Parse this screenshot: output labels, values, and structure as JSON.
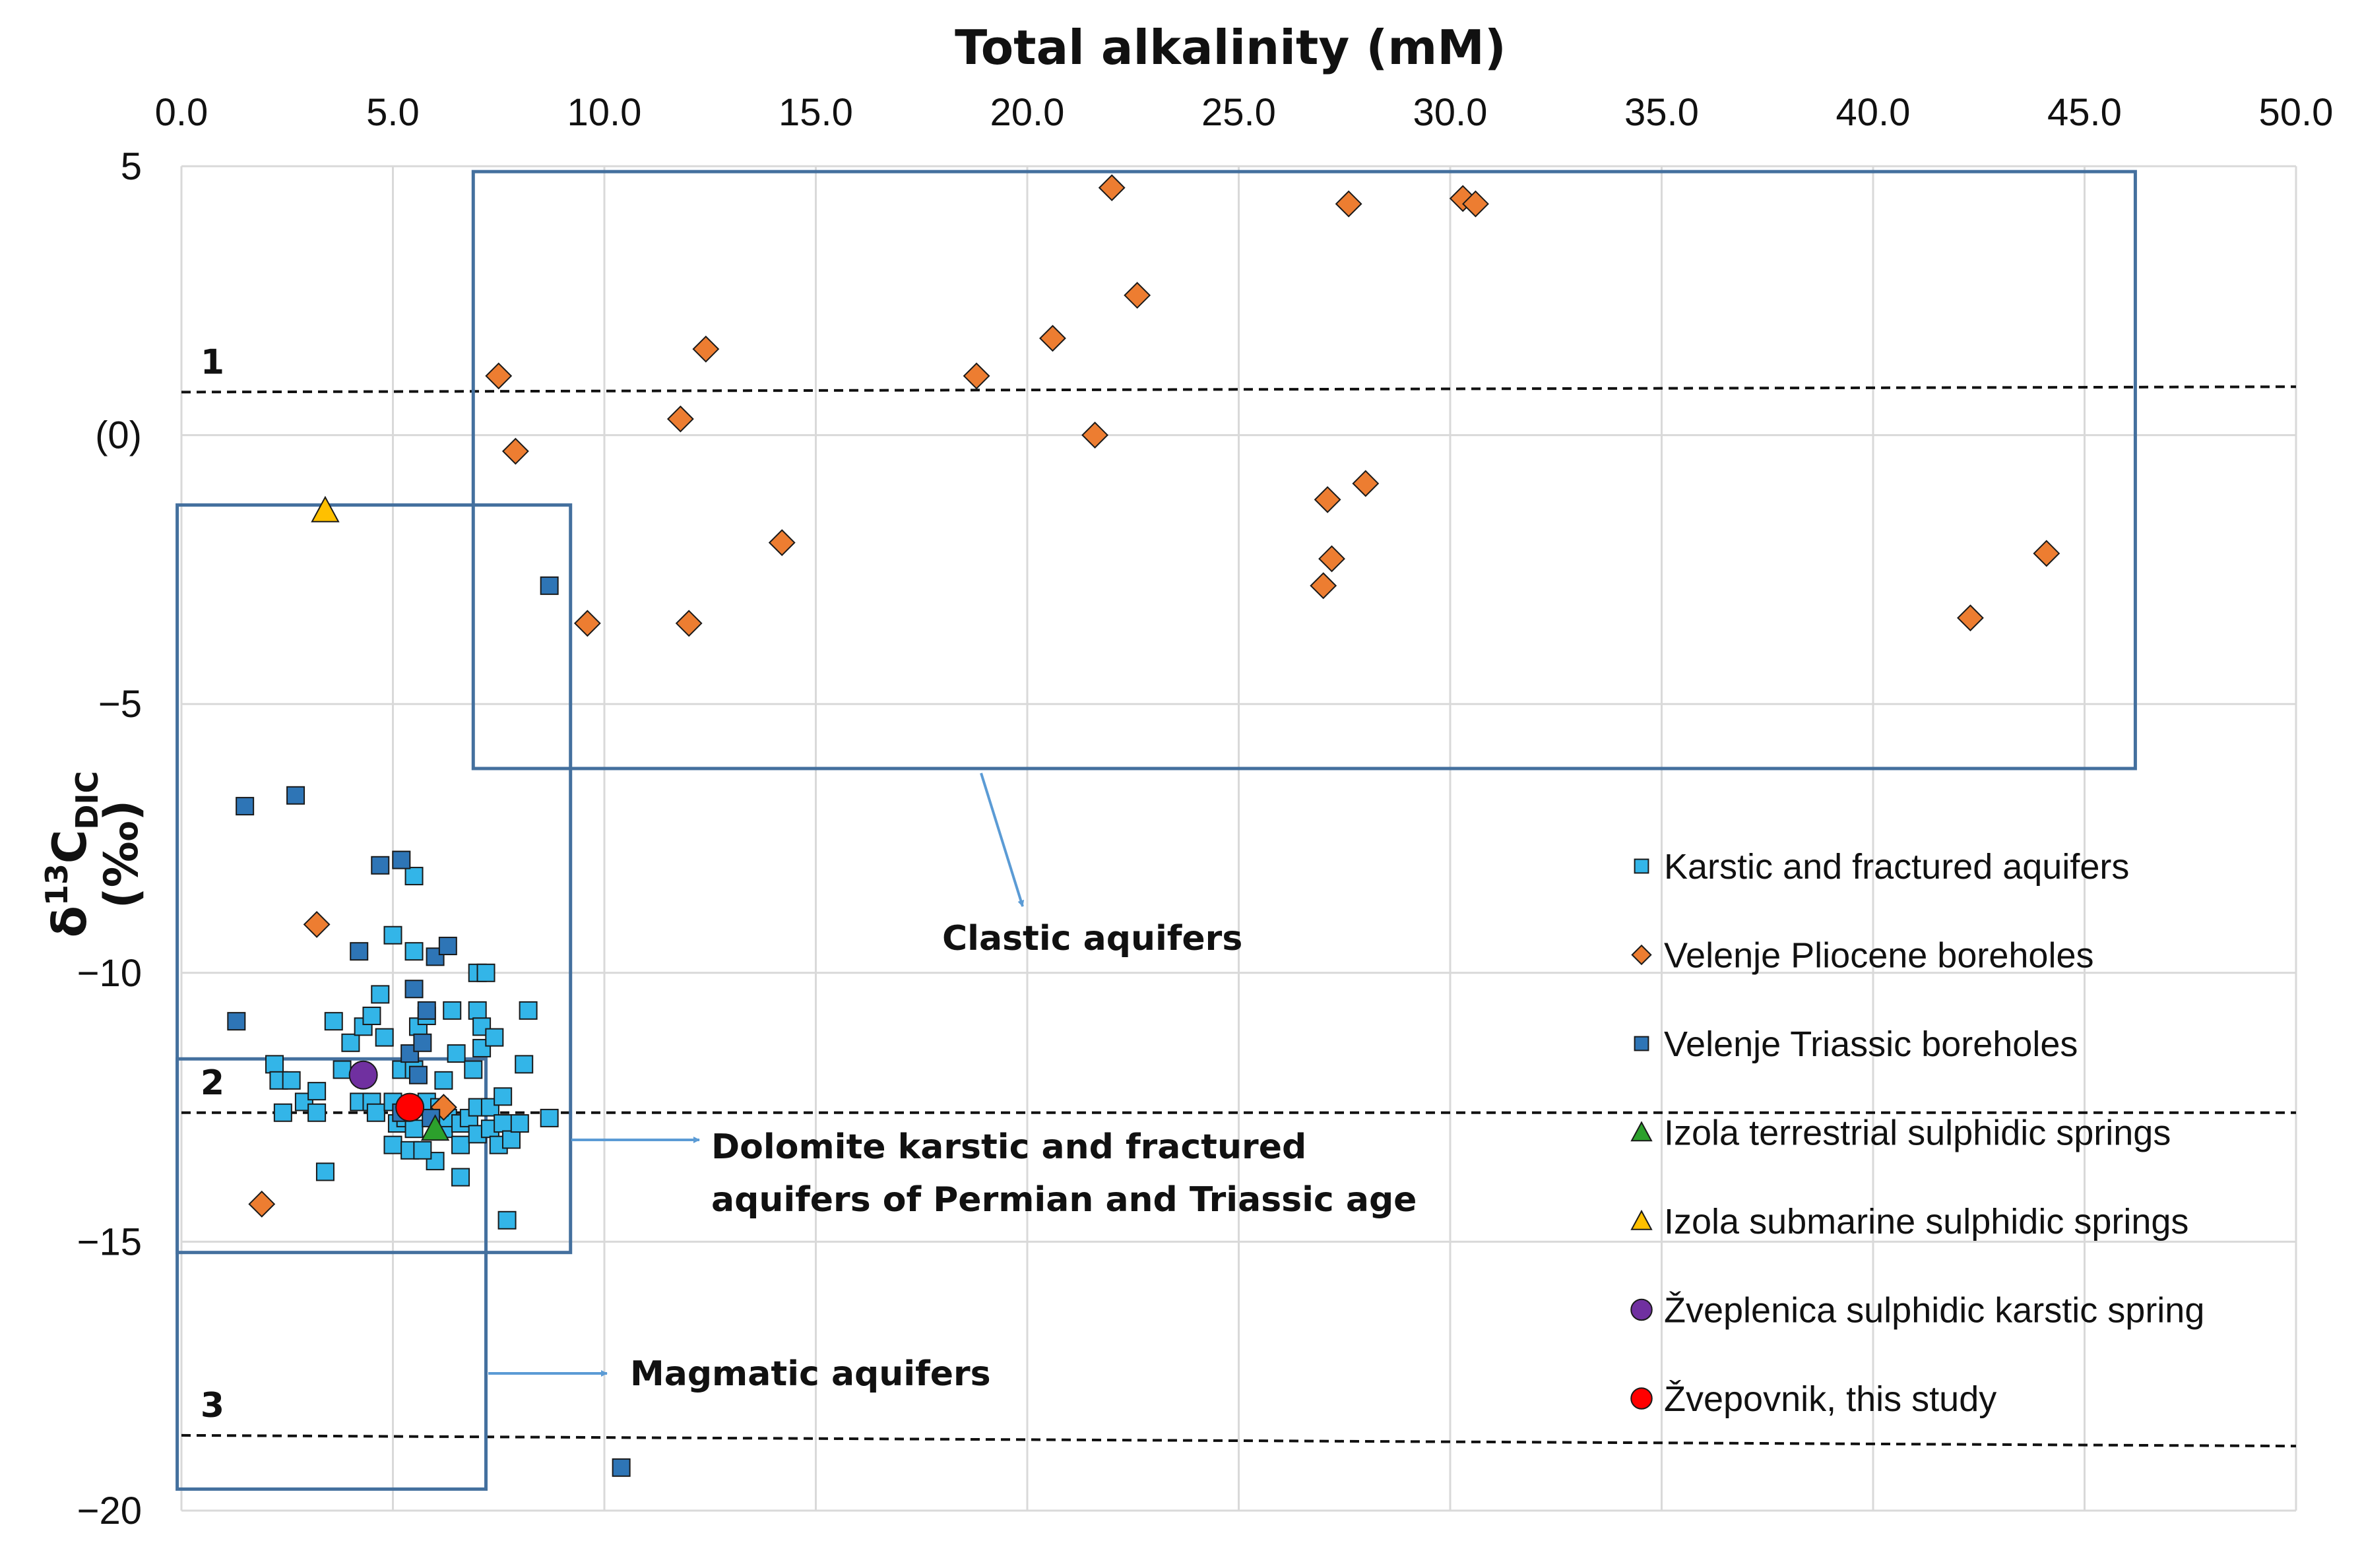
{
  "chart_data": {
    "type": "scatter",
    "title": "Total alkalinity (mM)",
    "xlabel": "Total alkalinity (mM)",
    "ylabel": {
      "delta": "δ",
      "sup": "13",
      "base": "C",
      "sub": "DIC",
      "unit": "(‰)"
    },
    "xlim": [
      0,
      50
    ],
    "ylim": [
      -20,
      5
    ],
    "x_axis_position": "top",
    "x_ticks": [
      "0.0",
      "5.0",
      "10.0",
      "15.0",
      "20.0",
      "25.0",
      "30.0",
      "35.0",
      "40.0",
      "45.0",
      "50.0"
    ],
    "y_ticks": [
      {
        "value": 5,
        "label": "5"
      },
      {
        "value": 0,
        "label": "(0)"
      },
      {
        "value": -5,
        "label": "−5"
      },
      {
        "value": -10,
        "label": "−10"
      },
      {
        "value": -15,
        "label": "−15"
      },
      {
        "value": -20,
        "label": "−20"
      }
    ],
    "grid": true,
    "legend_position": "right",
    "series": [
      {
        "name": "Karstic and fractured aquifers",
        "marker": "square",
        "color": "#33b5e8",
        "points": [
          [
            2.2,
            -11.7
          ],
          [
            2.3,
            -12.0
          ],
          [
            2.6,
            -12.0
          ],
          [
            2.4,
            -12.6
          ],
          [
            2.9,
            -12.4
          ],
          [
            3.2,
            -12.6
          ],
          [
            3.2,
            -12.2
          ],
          [
            3.4,
            -13.7
          ],
          [
            3.6,
            -10.9
          ],
          [
            3.8,
            -11.8
          ],
          [
            4.0,
            -11.3
          ],
          [
            4.3,
            -11.0
          ],
          [
            4.5,
            -10.8
          ],
          [
            4.2,
            -12.4
          ],
          [
            4.5,
            -12.4
          ],
          [
            4.6,
            -12.6
          ],
          [
            4.8,
            -11.2
          ],
          [
            4.7,
            -10.4
          ],
          [
            5.0,
            -9.3
          ],
          [
            5.2,
            -11.8
          ],
          [
            5.0,
            -12.4
          ],
          [
            5.1,
            -12.8
          ],
          [
            5.0,
            -13.2
          ],
          [
            5.3,
            -12.7
          ],
          [
            5.5,
            -12.9
          ],
          [
            5.4,
            -13.3
          ],
          [
            5.5,
            -11.8
          ],
          [
            5.6,
            -11.0
          ],
          [
            5.8,
            -10.8
          ],
          [
            5.8,
            -12.4
          ],
          [
            5.5,
            -9.6
          ],
          [
            5.5,
            -8.2
          ],
          [
            6.0,
            -13.5
          ],
          [
            6.2,
            -12.0
          ],
          [
            6.2,
            -12.9
          ],
          [
            6.3,
            -12.7
          ],
          [
            6.4,
            -10.7
          ],
          [
            6.5,
            -11.5
          ],
          [
            6.6,
            -12.8
          ],
          [
            6.6,
            -13.2
          ],
          [
            6.6,
            -13.8
          ],
          [
            6.8,
            -12.7
          ],
          [
            6.9,
            -11.8
          ],
          [
            7.0,
            -12.5
          ],
          [
            7.0,
            -13.0
          ],
          [
            7.0,
            -10.7
          ],
          [
            7.0,
            -10.0
          ],
          [
            7.1,
            -11.0
          ],
          [
            7.1,
            -11.4
          ],
          [
            7.2,
            -10.0
          ],
          [
            7.3,
            -12.5
          ],
          [
            7.3,
            -12.9
          ],
          [
            7.4,
            -11.2
          ],
          [
            7.5,
            -13.2
          ],
          [
            7.6,
            -12.3
          ],
          [
            7.6,
            -12.8
          ],
          [
            7.8,
            -13.1
          ],
          [
            7.7,
            -14.6
          ],
          [
            8.0,
            -12.8
          ],
          [
            8.1,
            -11.7
          ],
          [
            8.2,
            -10.7
          ],
          [
            8.7,
            -12.7
          ],
          [
            6.1,
            -12.5
          ],
          [
            5.7,
            -13.3
          ]
        ]
      },
      {
        "name": "Velenje Pliocene boreholes",
        "marker": "diamond",
        "color": "#ed7d31",
        "points": [
          [
            1.9,
            -14.3
          ],
          [
            3.2,
            -9.1
          ],
          [
            6.2,
            -12.5
          ],
          [
            7.5,
            1.1
          ],
          [
            7.9,
            -0.3
          ],
          [
            9.6,
            -3.5
          ],
          [
            11.8,
            0.3
          ],
          [
            12.0,
            -3.5
          ],
          [
            12.4,
            1.6
          ],
          [
            14.2,
            -2.0
          ],
          [
            18.8,
            1.1
          ],
          [
            20.6,
            1.8
          ],
          [
            21.6,
            0.0
          ],
          [
            22.0,
            4.6
          ],
          [
            22.6,
            2.6
          ],
          [
            27.0,
            -2.8
          ],
          [
            27.1,
            -1.2
          ],
          [
            27.2,
            -2.3
          ],
          [
            27.6,
            4.3
          ],
          [
            28.0,
            -0.9
          ],
          [
            30.3,
            4.4
          ],
          [
            30.6,
            4.3
          ],
          [
            42.3,
            -3.4
          ],
          [
            44.1,
            -2.2
          ]
        ]
      },
      {
        "name": "Velenje Triassic boreholes",
        "marker": "square",
        "color": "#2e75b6",
        "points": [
          [
            1.3,
            -10.9
          ],
          [
            1.5,
            -6.9
          ],
          [
            2.7,
            -6.7
          ],
          [
            4.2,
            -9.6
          ],
          [
            4.7,
            -8.0
          ],
          [
            5.2,
            -7.9
          ],
          [
            5.2,
            -12.6
          ],
          [
            5.4,
            -11.5
          ],
          [
            5.5,
            -10.3
          ],
          [
            5.6,
            -11.9
          ],
          [
            5.7,
            -11.3
          ],
          [
            5.8,
            -10.7
          ],
          [
            5.9,
            -12.7
          ],
          [
            6.0,
            -9.7
          ],
          [
            6.3,
            -9.5
          ],
          [
            8.7,
            -2.8
          ],
          [
            10.4,
            -19.2
          ]
        ]
      },
      {
        "name": "Izola terrestrial sulphidic springs",
        "marker": "triangle",
        "color": "#2ca02c",
        "points": [
          [
            6.0,
            -12.9
          ]
        ]
      },
      {
        "name": "Izola submarine sulphidic springs",
        "marker": "triangle",
        "color": "#ffc000",
        "points": [
          [
            3.4,
            -1.4
          ]
        ]
      },
      {
        "name": "Žveplenica sulphidic karstic spring",
        "marker": "circle",
        "color": "#7030a0",
        "points": [
          [
            4.3,
            -11.9
          ]
        ]
      },
      {
        "name": "Žvepovnik, this study",
        "marker": "circle",
        "color": "#ff0000",
        "points": [
          [
            5.4,
            -12.5
          ]
        ]
      }
    ],
    "reference_lines": [
      {
        "label": "1",
        "y_start": 0.8,
        "y_end": 0.9
      },
      {
        "label": "2",
        "y_start": -12.6,
        "y_end": -12.6
      },
      {
        "label": "3",
        "y_start": -18.6,
        "y_end": -18.8
      }
    ],
    "regions": [
      {
        "label": "Clastic aquifers",
        "x": [
          6.9,
          46.2
        ],
        "y": [
          -6.2,
          4.9
        ]
      },
      {
        "label": "Dolomite karstic and fractured aquifers of Permian and Triassic age",
        "x": [
          -0.1,
          9.2
        ],
        "y": [
          -15.2,
          -1.3
        ]
      },
      {
        "label": "Magmatic aquifers",
        "x": [
          -0.1,
          7.2
        ],
        "y": [
          -19.6,
          -11.6
        ]
      }
    ],
    "annotations": [
      "Clastic aquifers",
      "Dolomite karstic and fractured",
      "aquifers of Permian and Triassic age",
      "Magmatic aquifers"
    ]
  },
  "colors": {
    "grid": "#d9d9d9",
    "region_box": "#44709e",
    "arrow": "#5b9bd5",
    "marker_stroke": "#1a1a1a"
  }
}
